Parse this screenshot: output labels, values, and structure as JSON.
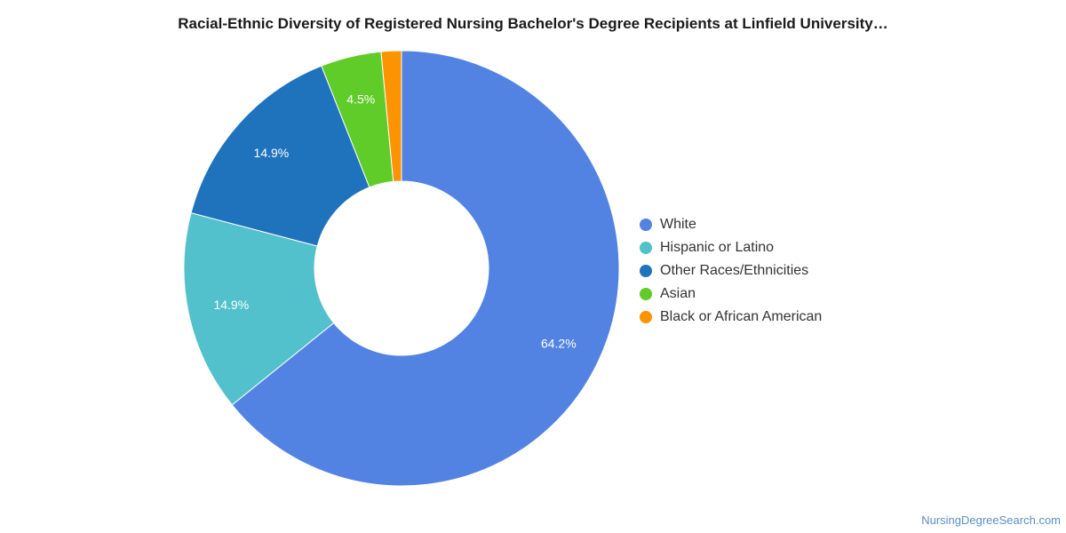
{
  "chart_data": {
    "type": "pie",
    "title": "Racial-Ethnic Diversity of Registered Nursing Bachelor's Degree Recipients at Linfield University…",
    "categories": [
      "White",
      "Hispanic or Latino",
      "Other Races/Ethnicities",
      "Asian",
      "Black or African American"
    ],
    "values": [
      64.2,
      14.9,
      14.9,
      4.5,
      1.5
    ],
    "data_labels": [
      "64.2%",
      "14.9%",
      "14.9%",
      "4.5%",
      ""
    ],
    "colors": [
      "#5283e2",
      "#52c1cb",
      "#1f72bc",
      "#60cc2a",
      "#fb9400"
    ],
    "donut": true,
    "legend_position": "right"
  },
  "source_label": "NursingDegreeSearch.com"
}
